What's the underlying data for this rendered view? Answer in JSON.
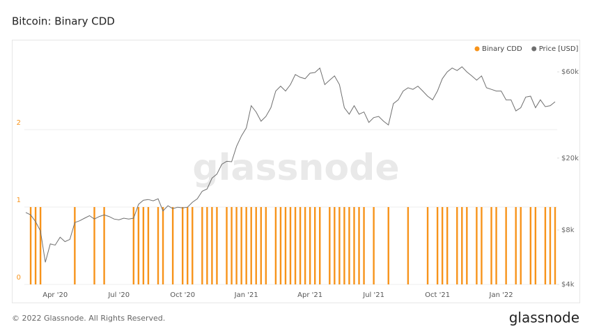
{
  "chart_data": {
    "type": "combo",
    "title": "Bitcoin: Binary CDD",
    "watermark": "glassnode",
    "categories": [
      null,
      null,
      null,
      null,
      null,
      null,
      "Apr '20",
      null,
      null,
      null,
      null,
      null,
      null,
      null,
      null,
      null,
      null,
      null,
      null,
      "Jul '20",
      null,
      null,
      null,
      null,
      null,
      null,
      null,
      null,
      null,
      null,
      null,
      null,
      "Oct '20",
      null,
      null,
      null,
      null,
      null,
      null,
      null,
      null,
      null,
      null,
      null,
      null,
      "Jan '21",
      null,
      null,
      null,
      null,
      null,
      null,
      null,
      null,
      null,
      null,
      null,
      null,
      "Apr '21",
      null,
      null,
      null,
      null,
      null,
      null,
      null,
      null,
      null,
      null,
      null,
      null,
      "Jul '21",
      null,
      null,
      null,
      null,
      null,
      null,
      null,
      null,
      null,
      null,
      null,
      null,
      "Oct '21",
      null,
      null,
      null,
      null,
      null,
      null,
      null,
      null,
      null,
      null,
      null,
      null,
      "Jan '22",
      null,
      null,
      null,
      null,
      null,
      null,
      null,
      null,
      null,
      null,
      null
    ],
    "series": [
      {
        "name": "Binary CDD",
        "type": "bar",
        "color": "#f7931a",
        "values": [
          0,
          1,
          1,
          1,
          0,
          0,
          0,
          0,
          0,
          0,
          1,
          0,
          0,
          0,
          1,
          0,
          1,
          0,
          0,
          0,
          0,
          0,
          1,
          1,
          1,
          1,
          0,
          1,
          1,
          0,
          1,
          0,
          1,
          1,
          1,
          0,
          1,
          1,
          1,
          1,
          0,
          1,
          1,
          1,
          1,
          1,
          1,
          1,
          1,
          1,
          0,
          1,
          1,
          1,
          1,
          1,
          1,
          1,
          1,
          1,
          1,
          0,
          1,
          1,
          1,
          1,
          1,
          1,
          1,
          1,
          0,
          1,
          0,
          0,
          1,
          0,
          0,
          0,
          1,
          0,
          0,
          0,
          1,
          0,
          1,
          1,
          1,
          0,
          1,
          1,
          1,
          0,
          1,
          1,
          0,
          1,
          1,
          0,
          1,
          0,
          1,
          1,
          0,
          1,
          1,
          0,
          1,
          1,
          1
        ]
      },
      {
        "name": "Price [USD]",
        "type": "line",
        "color": "#6f6f6f",
        "axis": "y2",
        "values": [
          10000,
          9700,
          8900,
          7900,
          5300,
          6700,
          6600,
          7300,
          6900,
          7100,
          8800,
          9000,
          9300,
          9600,
          9200,
          9500,
          9700,
          9500,
          9200,
          9100,
          9300,
          9200,
          9300,
          11100,
          11700,
          11800,
          11600,
          11900,
          10200,
          10900,
          10500,
          10700,
          10600,
          10700,
          11400,
          11900,
          13100,
          13500,
          15500,
          16300,
          18500,
          19200,
          19100,
          23200,
          26500,
          29400,
          39000,
          36000,
          32000,
          34000,
          38000,
          47000,
          50000,
          47000,
          51000,
          58000,
          56000,
          55000,
          59000,
          59500,
          63000,
          51000,
          54000,
          57000,
          51000,
          38000,
          35000,
          39000,
          35000,
          36000,
          31500,
          33500,
          34000,
          32000,
          30500,
          40000,
          42000,
          47000,
          49000,
          48000,
          50000,
          47000,
          44000,
          42000,
          47000,
          55000,
          60000,
          63000,
          61000,
          64000,
          60000,
          57000,
          54000,
          57000,
          49000,
          48000,
          47000,
          47000,
          42000,
          42000,
          36500,
          38000,
          43500,
          44000,
          38000,
          42000,
          38500,
          39000,
          41000
        ]
      }
    ],
    "ylim": [
      0,
      3
    ],
    "yticks": [
      0,
      1,
      2
    ],
    "y2lim": [
      4000,
      77000
    ],
    "y2log": true,
    "y2ticks": [
      {
        "value": 4000,
        "label": "$4k"
      },
      {
        "value": 8000,
        "label": "$8k"
      },
      {
        "value": 20000,
        "label": "$20k"
      },
      {
        "value": 60000,
        "label": "$60k"
      }
    ],
    "grid": true,
    "legend": "top-right"
  },
  "footer": {
    "copyright": "© 2022 Glassnode. All Rights Reserved.",
    "logo": "glassnode"
  }
}
